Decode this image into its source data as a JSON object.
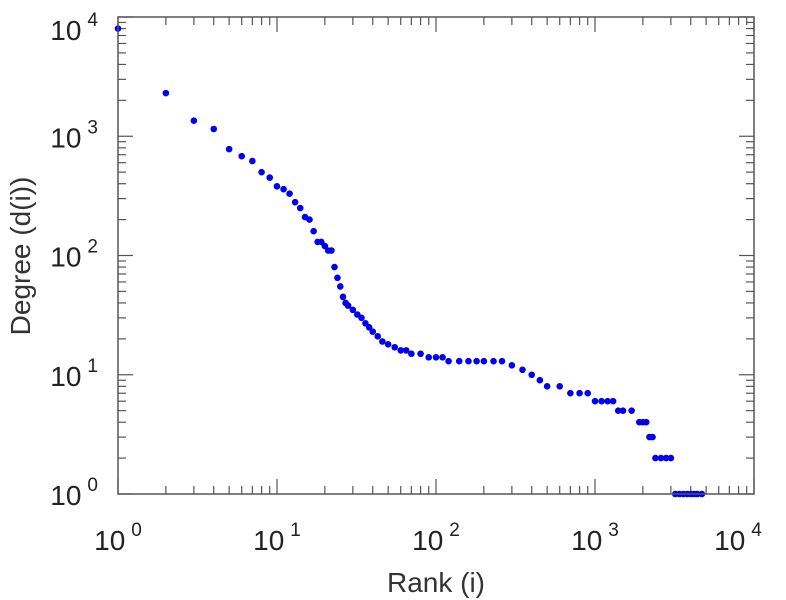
{
  "chart_data": {
    "type": "scatter",
    "title": "",
    "xlabel": "Rank (i)",
    "ylabel": "Degree (d(i))",
    "xscale": "log",
    "yscale": "log",
    "xlim": [
      1,
      10000
    ],
    "ylim": [
      1,
      10000
    ],
    "x_ticks": [
      {
        "base": "10",
        "exp": "0",
        "value": 1
      },
      {
        "base": "10",
        "exp": "1",
        "value": 10
      },
      {
        "base": "10",
        "exp": "2",
        "value": 100
      },
      {
        "base": "10",
        "exp": "3",
        "value": 1000
      },
      {
        "base": "10",
        "exp": "4",
        "value": 10000
      }
    ],
    "y_ticks": [
      {
        "base": "10",
        "exp": "0",
        "value": 1
      },
      {
        "base": "10",
        "exp": "1",
        "value": 10
      },
      {
        "base": "10",
        "exp": "2",
        "value": 100
      },
      {
        "base": "10",
        "exp": "3",
        "value": 1000
      },
      {
        "base": "10",
        "exp": "4",
        "value": 10000
      }
    ],
    "grid": false,
    "marker_color": "#0000ee",
    "series": [
      {
        "x": [
          1,
          2,
          3,
          4,
          5,
          6,
          7,
          8,
          9,
          10,
          11,
          12,
          13,
          14,
          15,
          16,
          17,
          18,
          19,
          20,
          21,
          22,
          23,
          24,
          25,
          26,
          27,
          28,
          30,
          32,
          34,
          36,
          38,
          40,
          43,
          46,
          50,
          55,
          60,
          65,
          70,
          80,
          90,
          100,
          110,
          120,
          140,
          160,
          180,
          200,
          230,
          260,
          300,
          350,
          400,
          450,
          500,
          600,
          700,
          800,
          900,
          1000,
          1100,
          1200,
          1300,
          1400,
          1500,
          1700,
          1900,
          2000,
          2100,
          2200,
          2300,
          2400,
          2600,
          2800,
          3000,
          3200,
          3400,
          3600,
          3800,
          4000,
          4200,
          4400,
          4700
        ],
        "y": [
          8000,
          2300,
          1350,
          1150,
          780,
          680,
          620,
          500,
          450,
          380,
          360,
          330,
          280,
          250,
          210,
          200,
          160,
          130,
          130,
          120,
          110,
          110,
          80,
          65,
          55,
          45,
          40,
          38,
          35,
          32,
          30,
          27,
          25,
          23,
          21,
          19,
          18,
          17,
          16,
          16,
          15,
          15,
          14,
          14,
          14,
          13,
          13,
          13,
          13,
          13,
          13,
          13,
          12,
          11,
          10,
          9,
          8,
          8,
          7,
          7,
          7,
          6,
          6,
          6,
          6,
          5,
          5,
          5,
          4,
          4,
          4,
          3,
          3,
          2,
          2,
          2,
          2,
          1,
          1,
          1,
          1,
          1,
          1,
          1,
          1
        ]
      }
    ]
  }
}
